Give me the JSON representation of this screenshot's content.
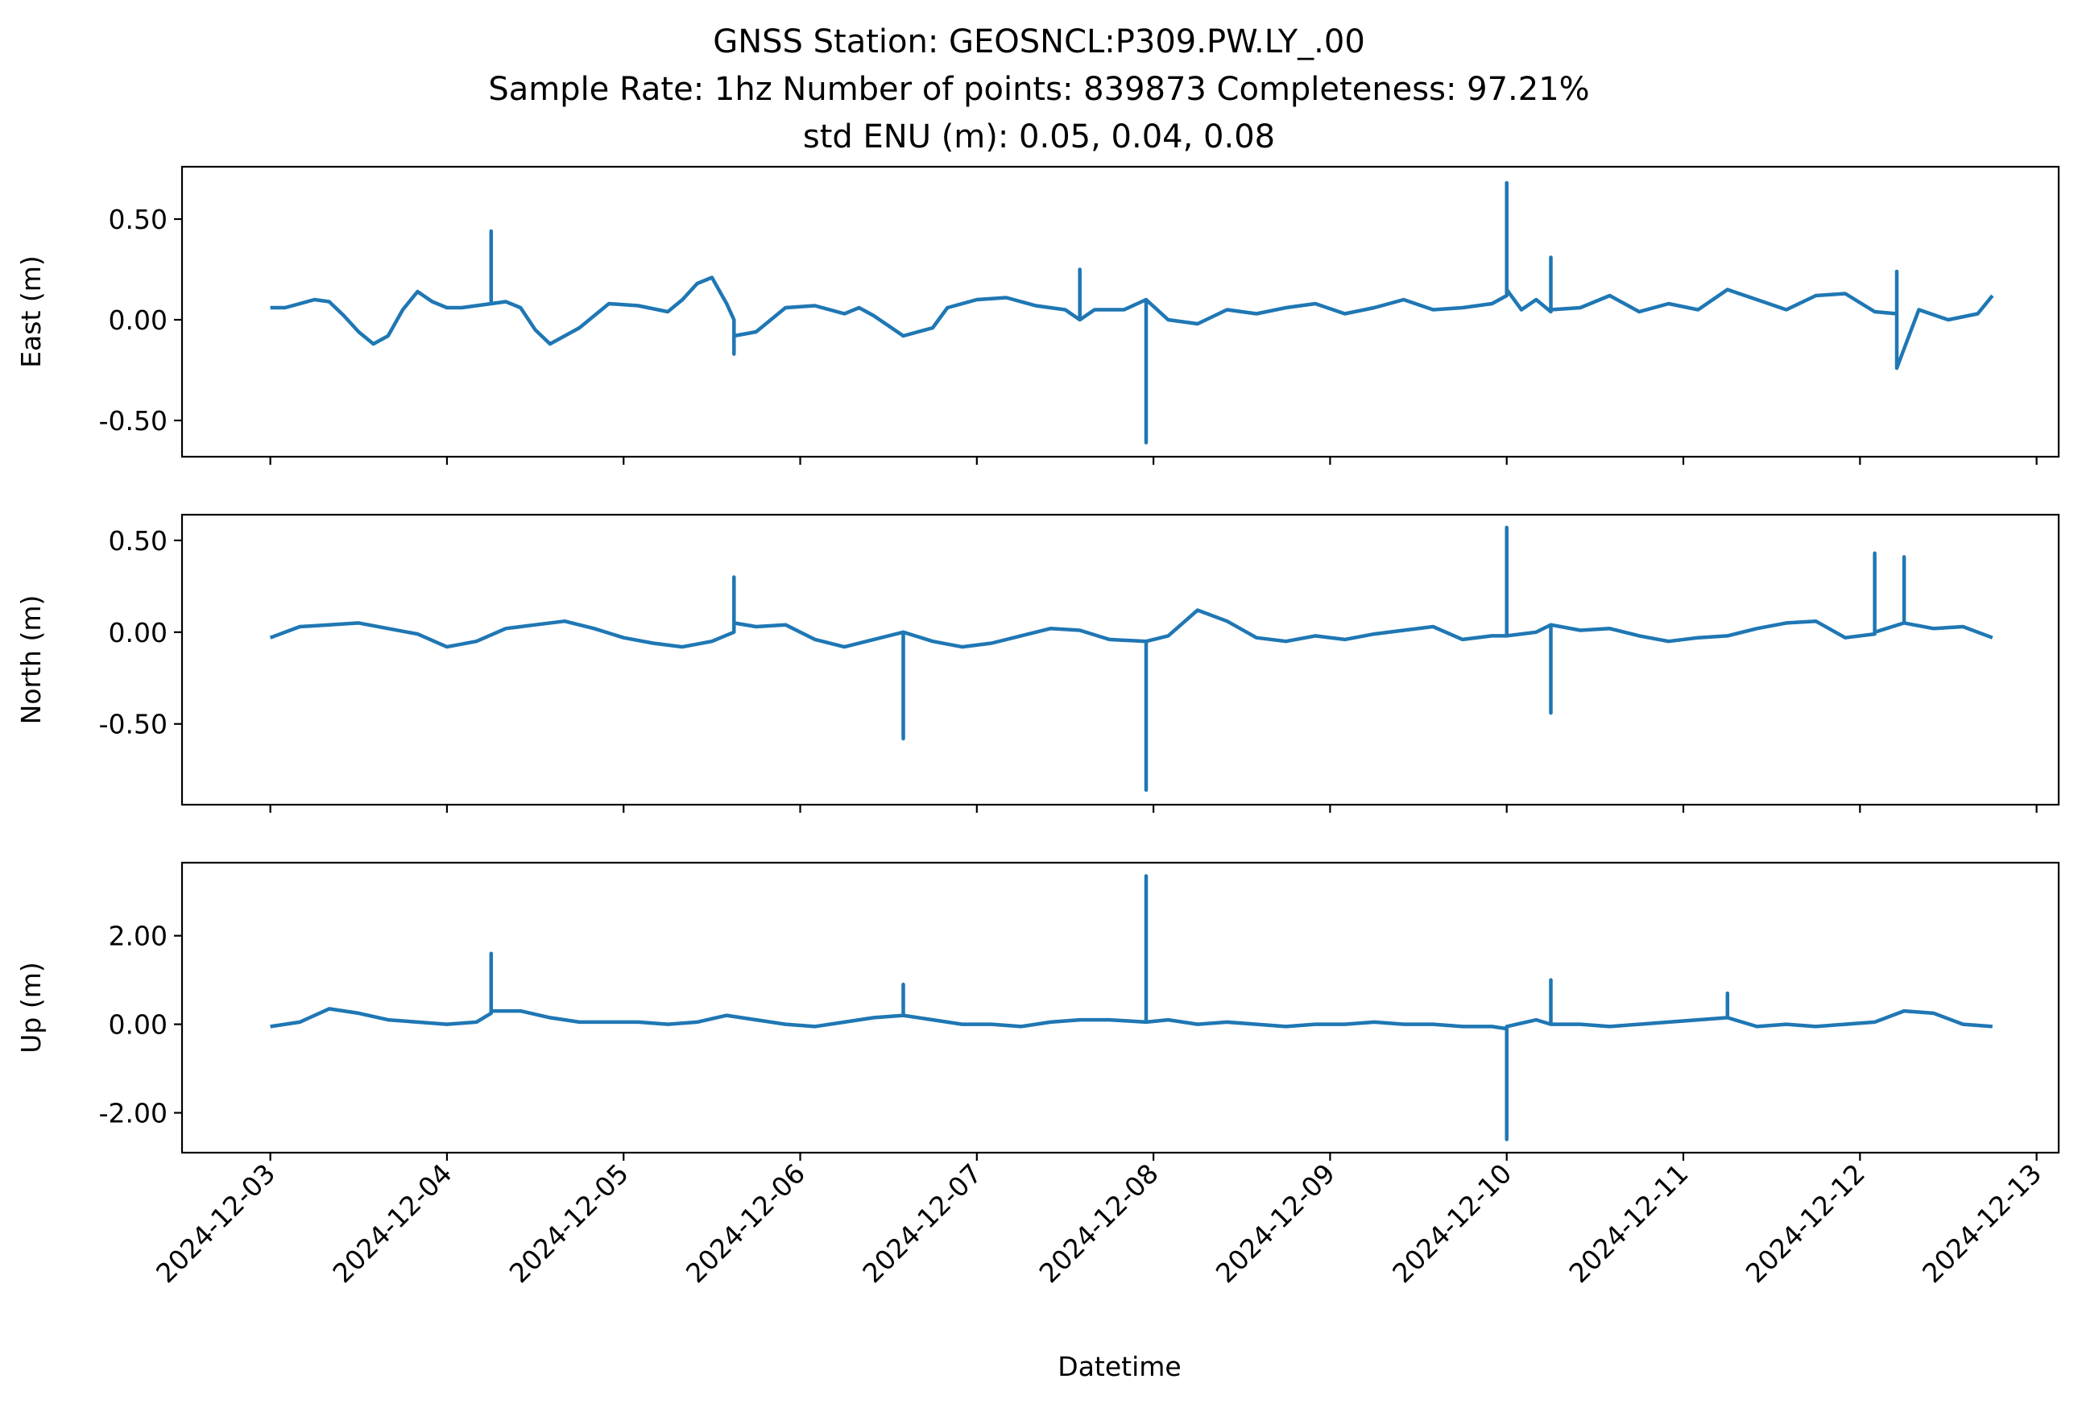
{
  "figure": {
    "title_lines": [
      "GNSS Station: GEOSNCL:P309.PW.LY_.00",
      "Sample Rate: 1hz   Number of points: 839873    Completeness:  97.21%",
      "std ENU (m):  0.05, 0.04, 0.08"
    ],
    "xlabel": "Datetime",
    "line_color": "#1f77b4"
  },
  "chart_data": [
    {
      "type": "line",
      "ylabel": "East (m)",
      "xlim": [
        "2024-12-02 12:00",
        "2024-12-13 03:00"
      ],
      "ylim": [
        -0.68,
        0.76
      ],
      "yticks": [
        0.5,
        0.0,
        -0.5
      ],
      "ytick_labels": [
        "0.50",
        "0.00",
        "-0.50"
      ],
      "xticks": [
        "2024-12-03",
        "2024-12-04",
        "2024-12-05",
        "2024-12-06",
        "2024-12-07",
        "2024-12-08",
        "2024-12-09",
        "2024-12-10",
        "2024-12-11",
        "2024-12-12",
        "2024-12-13"
      ],
      "xtick_labels_visible": false,
      "series": [
        {
          "x": [
            "2024-12-03 00:00",
            "2024-12-03 02:00",
            "2024-12-03 04:00",
            "2024-12-03 06:00",
            "2024-12-03 08:00",
            "2024-12-03 10:00",
            "2024-12-03 12:00",
            "2024-12-03 14:00",
            "2024-12-03 16:00",
            "2024-12-03 18:00",
            "2024-12-03 20:00",
            "2024-12-03 22:00",
            "2024-12-04 00:00",
            "2024-12-04 02:00",
            "2024-12-04 04:00",
            "2024-12-04 06:00",
            "2024-12-04 06:00",
            "2024-12-04 06:00",
            "2024-12-04 08:00",
            "2024-12-04 10:00",
            "2024-12-04 12:00",
            "2024-12-04 14:00",
            "2024-12-04 18:00",
            "2024-12-04 22:00",
            "2024-12-05 02:00",
            "2024-12-05 06:00",
            "2024-12-05 08:00",
            "2024-12-05 10:00",
            "2024-12-05 12:00",
            "2024-12-05 14:00",
            "2024-12-05 15:00",
            "2024-12-05 15:00",
            "2024-12-05 15:00",
            "2024-12-05 18:00",
            "2024-12-05 22:00",
            "2024-12-06 02:00",
            "2024-12-06 06:00",
            "2024-12-06 08:00",
            "2024-12-06 10:00",
            "2024-12-06 14:00",
            "2024-12-06 18:00",
            "2024-12-06 20:00",
            "2024-12-07 00:00",
            "2024-12-07 04:00",
            "2024-12-07 08:00",
            "2024-12-07 12:00",
            "2024-12-07 14:00",
            "2024-12-07 14:00",
            "2024-12-07 14:00",
            "2024-12-07 16:00",
            "2024-12-07 20:00",
            "2024-12-07 23:00",
            "2024-12-07 23:00",
            "2024-12-07 23:00",
            "2024-12-08 02:00",
            "2024-12-08 06:00",
            "2024-12-08 10:00",
            "2024-12-08 14:00",
            "2024-12-08 18:00",
            "2024-12-08 22:00",
            "2024-12-09 02:00",
            "2024-12-09 06:00",
            "2024-12-09 10:00",
            "2024-12-09 14:00",
            "2024-12-09 18:00",
            "2024-12-09 22:00",
            "2024-12-10 00:00",
            "2024-12-10 00:00",
            "2024-12-10 00:00",
            "2024-12-10 02:00",
            "2024-12-10 04:00",
            "2024-12-10 06:00",
            "2024-12-10 06:00",
            "2024-12-10 06:00",
            "2024-12-10 10:00",
            "2024-12-10 14:00",
            "2024-12-10 18:00",
            "2024-12-10 22:00",
            "2024-12-11 02:00",
            "2024-12-11 06:00",
            "2024-12-11 10:00",
            "2024-12-11 14:00",
            "2024-12-11 18:00",
            "2024-12-11 22:00",
            "2024-12-12 02:00",
            "2024-12-12 05:00",
            "2024-12-12 05:00",
            "2024-12-12 05:00",
            "2024-12-12 08:00",
            "2024-12-12 12:00",
            "2024-12-12 16:00",
            "2024-12-12 18:00"
          ],
          "y": [
            0.06,
            0.06,
            0.08,
            0.1,
            0.09,
            0.02,
            -0.06,
            -0.12,
            -0.08,
            0.05,
            0.14,
            0.09,
            0.06,
            0.06,
            0.07,
            0.08,
            0.44,
            0.08,
            0.09,
            0.06,
            -0.05,
            -0.12,
            -0.04,
            0.08,
            0.07,
            0.04,
            0.1,
            0.18,
            0.21,
            0.08,
            0.0,
            -0.17,
            -0.08,
            -0.06,
            0.06,
            0.07,
            0.03,
            0.06,
            0.02,
            -0.08,
            -0.04,
            0.06,
            0.1,
            0.11,
            0.07,
            0.05,
            0.0,
            0.25,
            0.0,
            0.05,
            0.05,
            0.1,
            -0.61,
            0.1,
            0.0,
            -0.02,
            0.05,
            0.03,
            0.06,
            0.08,
            0.03,
            0.06,
            0.1,
            0.05,
            0.06,
            0.08,
            0.12,
            0.68,
            0.15,
            0.05,
            0.1,
            0.04,
            0.31,
            0.05,
            0.06,
            0.12,
            0.04,
            0.08,
            0.05,
            0.15,
            0.1,
            0.05,
            0.12,
            0.13,
            0.04,
            0.03,
            0.24,
            -0.24,
            0.05,
            0.0,
            0.03,
            0.12
          ]
        }
      ]
    },
    {
      "type": "line",
      "ylabel": "North (m)",
      "xlim": [
        "2024-12-02 12:00",
        "2024-12-13 03:00"
      ],
      "ylim": [
        -0.94,
        0.64
      ],
      "yticks": [
        0.5,
        0.0,
        -0.5
      ],
      "ytick_labels": [
        "0.50",
        "0.00",
        "-0.50"
      ],
      "xticks": [
        "2024-12-03",
        "2024-12-04",
        "2024-12-05",
        "2024-12-06",
        "2024-12-07",
        "2024-12-08",
        "2024-12-09",
        "2024-12-10",
        "2024-12-11",
        "2024-12-12",
        "2024-12-13"
      ],
      "xtick_labels_visible": false,
      "series": [
        {
          "x": [
            "2024-12-03 00:00",
            "2024-12-03 04:00",
            "2024-12-03 08:00",
            "2024-12-03 12:00",
            "2024-12-03 16:00",
            "2024-12-03 20:00",
            "2024-12-04 00:00",
            "2024-12-04 04:00",
            "2024-12-04 08:00",
            "2024-12-04 12:00",
            "2024-12-04 16:00",
            "2024-12-04 20:00",
            "2024-12-05 00:00",
            "2024-12-05 04:00",
            "2024-12-05 08:00",
            "2024-12-05 12:00",
            "2024-12-05 15:00",
            "2024-12-05 15:00",
            "2024-12-05 15:00",
            "2024-12-05 18:00",
            "2024-12-05 22:00",
            "2024-12-06 02:00",
            "2024-12-06 06:00",
            "2024-12-06 10:00",
            "2024-12-06 14:00",
            "2024-12-06 14:00",
            "2024-12-06 14:00",
            "2024-12-06 18:00",
            "2024-12-06 22:00",
            "2024-12-07 02:00",
            "2024-12-07 06:00",
            "2024-12-07 10:00",
            "2024-12-07 14:00",
            "2024-12-07 18:00",
            "2024-12-07 23:00",
            "2024-12-07 23:00",
            "2024-12-07 23:00",
            "2024-12-08 02:00",
            "2024-12-08 06:00",
            "2024-12-08 10:00",
            "2024-12-08 14:00",
            "2024-12-08 18:00",
            "2024-12-08 22:00",
            "2024-12-09 02:00",
            "2024-12-09 06:00",
            "2024-12-09 10:00",
            "2024-12-09 14:00",
            "2024-12-09 18:00",
            "2024-12-09 22:00",
            "2024-12-10 00:00",
            "2024-12-10 00:00",
            "2024-12-10 00:00",
            "2024-12-10 04:00",
            "2024-12-10 06:00",
            "2024-12-10 06:00",
            "2024-12-10 06:00",
            "2024-12-10 10:00",
            "2024-12-10 14:00",
            "2024-12-10 18:00",
            "2024-12-10 22:00",
            "2024-12-11 02:00",
            "2024-12-11 06:00",
            "2024-12-11 10:00",
            "2024-12-11 14:00",
            "2024-12-11 18:00",
            "2024-12-11 22:00",
            "2024-12-12 02:00",
            "2024-12-12 02:00",
            "2024-12-12 02:00",
            "2024-12-12 06:00",
            "2024-12-12 06:00",
            "2024-12-12 06:00",
            "2024-12-12 10:00",
            "2024-12-12 14:00",
            "2024-12-12 18:00"
          ],
          "y": [
            -0.03,
            0.03,
            0.04,
            0.05,
            0.02,
            -0.01,
            -0.08,
            -0.05,
            0.02,
            0.04,
            0.06,
            0.02,
            -0.03,
            -0.06,
            -0.08,
            -0.05,
            0.0,
            0.3,
            0.05,
            0.03,
            0.04,
            -0.04,
            -0.08,
            -0.04,
            0.0,
            -0.58,
            0.0,
            -0.05,
            -0.08,
            -0.06,
            -0.02,
            0.02,
            0.01,
            -0.04,
            -0.05,
            -0.86,
            -0.05,
            -0.02,
            0.12,
            0.06,
            -0.03,
            -0.05,
            -0.02,
            -0.04,
            -0.01,
            0.01,
            0.03,
            -0.04,
            -0.02,
            -0.02,
            0.57,
            -0.02,
            0.0,
            0.04,
            -0.44,
            0.04,
            0.01,
            0.02,
            -0.02,
            -0.05,
            -0.03,
            -0.02,
            0.02,
            0.05,
            0.06,
            -0.03,
            -0.01,
            0.43,
            0.0,
            0.05,
            0.41,
            0.05,
            0.02,
            0.03,
            -0.03
          ]
        }
      ]
    },
    {
      "type": "line",
      "ylabel": "Up (m)",
      "xlim": [
        "2024-12-02 12:00",
        "2024-12-13 03:00"
      ],
      "ylim": [
        -2.9,
        3.65
      ],
      "yticks": [
        2.0,
        0.0,
        -2.0
      ],
      "ytick_labels": [
        "2.00",
        "0.00",
        "-2.00"
      ],
      "xticks": [
        "2024-12-03",
        "2024-12-04",
        "2024-12-05",
        "2024-12-06",
        "2024-12-07",
        "2024-12-08",
        "2024-12-09",
        "2024-12-10",
        "2024-12-11",
        "2024-12-12",
        "2024-12-13"
      ],
      "xtick_labels": [
        "2024-12-03",
        "2024-12-04",
        "2024-12-05",
        "2024-12-06",
        "2024-12-07",
        "2024-12-08",
        "2024-12-09",
        "2024-12-10",
        "2024-12-11",
        "2024-12-12",
        "2024-12-13"
      ],
      "series": [
        {
          "x": [
            "2024-12-03 00:00",
            "2024-12-03 04:00",
            "2024-12-03 08:00",
            "2024-12-03 12:00",
            "2024-12-03 16:00",
            "2024-12-03 20:00",
            "2024-12-04 00:00",
            "2024-12-04 04:00",
            "2024-12-04 06:00",
            "2024-12-04 06:00",
            "2024-12-04 06:00",
            "2024-12-04 10:00",
            "2024-12-04 14:00",
            "2024-12-04 18:00",
            "2024-12-04 22:00",
            "2024-12-05 02:00",
            "2024-12-05 06:00",
            "2024-12-05 10:00",
            "2024-12-05 14:00",
            "2024-12-05 18:00",
            "2024-12-05 22:00",
            "2024-12-06 02:00",
            "2024-12-06 06:00",
            "2024-12-06 10:00",
            "2024-12-06 14:00",
            "2024-12-06 14:00",
            "2024-12-06 14:00",
            "2024-12-06 18:00",
            "2024-12-06 22:00",
            "2024-12-07 02:00",
            "2024-12-07 06:00",
            "2024-12-07 10:00",
            "2024-12-07 14:00",
            "2024-12-07 18:00",
            "2024-12-07 23:00",
            "2024-12-07 23:00",
            "2024-12-07 23:00",
            "2024-12-08 02:00",
            "2024-12-08 06:00",
            "2024-12-08 10:00",
            "2024-12-08 14:00",
            "2024-12-08 18:00",
            "2024-12-08 22:00",
            "2024-12-09 02:00",
            "2024-12-09 06:00",
            "2024-12-09 10:00",
            "2024-12-09 14:00",
            "2024-12-09 18:00",
            "2024-12-09 22:00",
            "2024-12-10 00:00",
            "2024-12-10 00:00",
            "2024-12-10 00:00",
            "2024-12-10 04:00",
            "2024-12-10 06:00",
            "2024-12-10 06:00",
            "2024-12-10 06:00",
            "2024-12-10 10:00",
            "2024-12-10 14:00",
            "2024-12-10 18:00",
            "2024-12-10 22:00",
            "2024-12-11 02:00",
            "2024-12-11 06:00",
            "2024-12-11 06:00",
            "2024-12-11 06:00",
            "2024-12-11 10:00",
            "2024-12-11 14:00",
            "2024-12-11 18:00",
            "2024-12-11 22:00",
            "2024-12-12 02:00",
            "2024-12-12 06:00",
            "2024-12-12 10:00",
            "2024-12-12 14:00",
            "2024-12-12 18:00"
          ],
          "y": [
            -0.05,
            0.05,
            0.35,
            0.25,
            0.1,
            0.05,
            0.0,
            0.05,
            0.25,
            1.6,
            0.3,
            0.3,
            0.15,
            0.05,
            0.05,
            0.05,
            0.0,
            0.05,
            0.2,
            0.1,
            0.0,
            -0.05,
            0.05,
            0.15,
            0.2,
            0.9,
            0.2,
            0.1,
            0.0,
            0.0,
            -0.05,
            0.05,
            0.1,
            0.1,
            0.05,
            3.35,
            0.05,
            0.1,
            0.0,
            0.05,
            0.0,
            -0.05,
            0.0,
            0.0,
            0.05,
            0.0,
            0.0,
            -0.05,
            -0.05,
            -0.1,
            -2.6,
            -0.05,
            0.1,
            0.0,
            1.0,
            0.0,
            0.0,
            -0.05,
            0.0,
            0.05,
            0.1,
            0.15,
            0.7,
            0.15,
            -0.05,
            0.0,
            -0.05,
            0.0,
            0.05,
            0.3,
            0.25,
            0.0,
            -0.05
          ]
        }
      ]
    }
  ]
}
